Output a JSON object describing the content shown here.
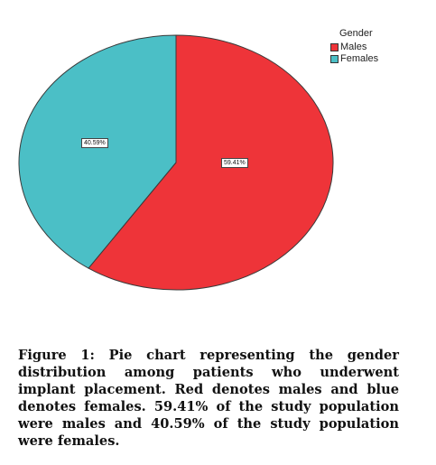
{
  "chart_data": {
    "type": "pie",
    "legend_title": "Gender",
    "legend_position": "top-right",
    "categories": [
      "Males",
      "Females"
    ],
    "values": [
      59.41,
      40.59
    ],
    "value_labels": [
      "59.41%",
      "40.59%"
    ],
    "colors": [
      "#ee3439",
      "#4bbfc6"
    ],
    "border_color": "#3a3a3a"
  },
  "caption": {
    "label": "Figure 1:",
    "text": " Pie chart representing the gender distribution among patients who underwent implant placement. Red denotes males and blue denotes females. 59.41% of the study population were males and 40.59% of the study population were females."
  }
}
